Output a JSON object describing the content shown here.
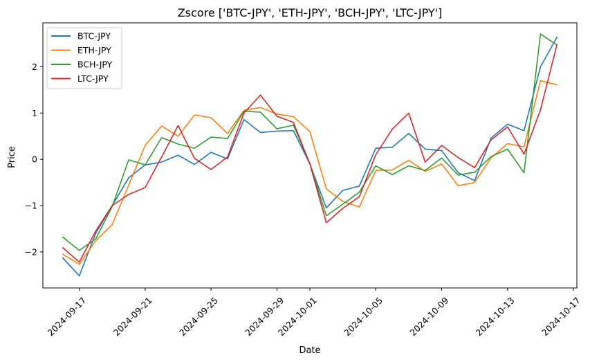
{
  "chart_data": {
    "type": "line",
    "title": "Zscore ['BTC-JPY', 'ETH-JPY', 'BCH-JPY', 'LTC-JPY']",
    "xlabel": "Date",
    "ylabel": "Price",
    "x_tick_labels": [
      "2024-09-17",
      "2024-09-21",
      "2024-09-25",
      "2024-09-29",
      "2024-10-01",
      "2024-10-05",
      "2024-10-09",
      "2024-10-13",
      "2024-10-17"
    ],
    "y_tick_labels": [
      "−2",
      "−1",
      "0",
      "1",
      "2"
    ],
    "y_ticks": [
      -2,
      -1,
      0,
      1,
      2
    ],
    "ylim": [
      -2.78,
      2.95
    ],
    "xlim": [
      "2024-09-14T19:00",
      "2024-10-17T05:00"
    ],
    "legend_position": "upper-left",
    "grid": false,
    "x": [
      "2024-09-16",
      "2024-09-17",
      "2024-09-18",
      "2024-09-19",
      "2024-09-20",
      "2024-09-21",
      "2024-09-22",
      "2024-09-23",
      "2024-09-24",
      "2024-09-25",
      "2024-09-26",
      "2024-09-27",
      "2024-09-28",
      "2024-09-29",
      "2024-09-30",
      "2024-10-01",
      "2024-10-02",
      "2024-10-03",
      "2024-10-04",
      "2024-10-05",
      "2024-10-06",
      "2024-10-07",
      "2024-10-08",
      "2024-10-09",
      "2024-10-10",
      "2024-10-11",
      "2024-10-12",
      "2024-10-13",
      "2024-10-14",
      "2024-10-15",
      "2024-10-16"
    ],
    "series": [
      {
        "name": "BTC-JPY",
        "color": "#1f77b4",
        "values": [
          -2.13,
          -2.52,
          -1.6,
          -1.0,
          -0.4,
          -0.12,
          -0.06,
          0.09,
          -0.11,
          0.15,
          0.01,
          0.86,
          0.58,
          0.61,
          0.62,
          -0.1,
          -1.05,
          -0.67,
          -0.58,
          0.24,
          0.26,
          0.56,
          0.22,
          0.19,
          -0.29,
          -0.46,
          0.46,
          0.76,
          0.62,
          2.0,
          2.64
        ]
      },
      {
        "name": "ETH-JPY",
        "color": "#ff7f0e",
        "values": [
          -2.05,
          -2.27,
          -1.76,
          -1.41,
          -0.56,
          0.3,
          0.72,
          0.5,
          0.96,
          0.9,
          0.56,
          1.06,
          1.12,
          0.98,
          0.92,
          0.6,
          -0.64,
          -0.91,
          -1.03,
          -0.24,
          -0.23,
          -0.02,
          -0.26,
          -0.1,
          -0.57,
          -0.5,
          0.03,
          0.34,
          0.27,
          1.7,
          1.61
        ]
      },
      {
        "name": "BCH-JPY",
        "color": "#2ca02c",
        "values": [
          -1.68,
          -1.97,
          -1.72,
          -1.02,
          -0.01,
          -0.12,
          0.47,
          0.33,
          0.24,
          0.48,
          0.45,
          1.04,
          1.02,
          0.66,
          0.74,
          -0.09,
          -1.22,
          -0.97,
          -0.71,
          -0.14,
          -0.33,
          -0.14,
          -0.24,
          0.03,
          -0.34,
          -0.28,
          0.06,
          0.22,
          -0.29,
          2.71,
          2.47
        ]
      },
      {
        "name": "LTC-JPY",
        "color": "#d62728",
        "values": [
          -1.91,
          -2.22,
          -1.55,
          -1.0,
          -0.76,
          -0.61,
          0.05,
          0.73,
          0.02,
          -0.22,
          0.05,
          1.0,
          1.39,
          0.93,
          0.8,
          -0.1,
          -1.37,
          -1.06,
          -0.81,
          0.1,
          0.65,
          1.0,
          -0.06,
          0.3,
          0.04,
          -0.18,
          0.42,
          0.7,
          0.11,
          1.07,
          2.48
        ]
      }
    ]
  }
}
